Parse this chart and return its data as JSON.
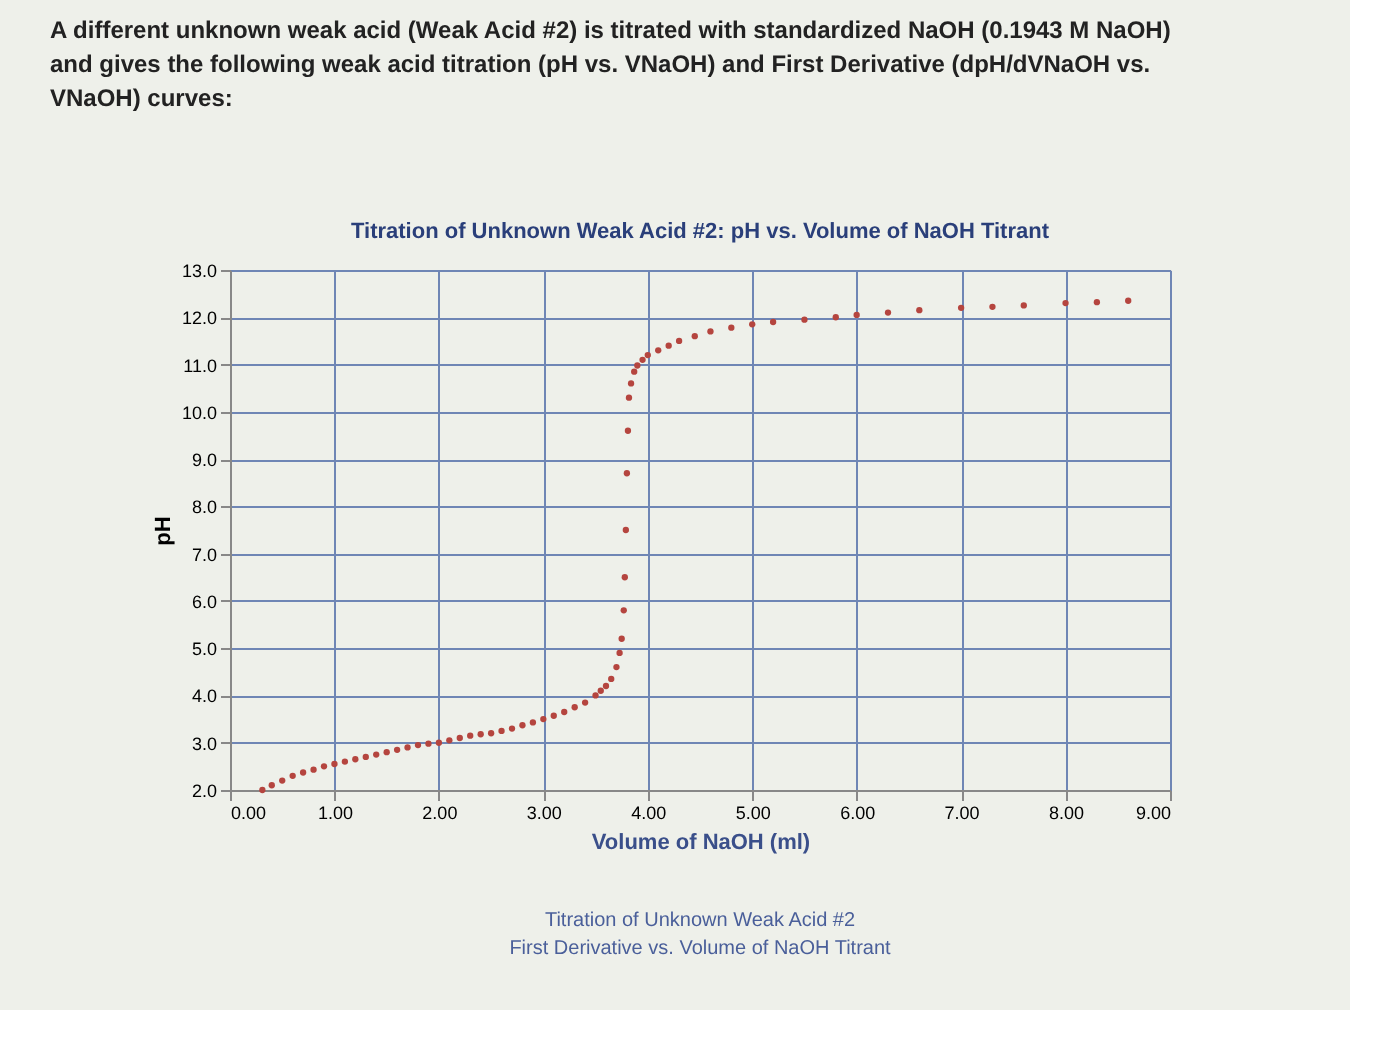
{
  "chart_data": {
    "type": "scatter",
    "title": "Titration of Unknown Weak Acid #2: pH vs. Volume of NaOH Titrant",
    "xlabel": "Volume of NaOH (ml)",
    "ylabel": "pH",
    "annotations": [
      "A different unknown weak acid (Weak Acid #2) is titrated with standardized NaOH (0.1943 M NaOH) and gives the following weak acid titration (pH vs. VNaOH) and First Derivative (dpH/dVNaOH vs. VNaOH) curves:",
      "Titration of Unknown Weak Acid #2",
      "First Derivative vs. Volume of NaOH Titrant"
    ],
    "series": [
      {
        "color": "#b5453f",
        "x": [
          0.31,
          0.4,
          0.5,
          0.6,
          0.7,
          0.8,
          0.9,
          1.0,
          1.1,
          1.2,
          1.3,
          1.4,
          1.5,
          1.6,
          1.7,
          1.8,
          1.9,
          2.0,
          2.1,
          2.2,
          2.3,
          2.4,
          2.5,
          2.6,
          2.7,
          2.8,
          2.9,
          3.0,
          3.1,
          3.2,
          3.3,
          3.4,
          3.5,
          3.55,
          3.6,
          3.65,
          3.7,
          3.73,
          3.75,
          3.77,
          3.78,
          3.79,
          3.8,
          3.81,
          3.82,
          3.84,
          3.87,
          3.9,
          3.95,
          4.0,
          4.1,
          4.2,
          4.3,
          4.45,
          4.6,
          4.8,
          5.0,
          5.2,
          5.5,
          5.8,
          6.0,
          6.3,
          6.6,
          7.0,
          7.3,
          7.6,
          8.0,
          8.3,
          8.6
        ],
        "values": [
          2.0,
          2.1,
          2.2,
          2.3,
          2.37,
          2.43,
          2.5,
          2.55,
          2.6,
          2.65,
          2.7,
          2.75,
          2.8,
          2.85,
          2.9,
          2.95,
          2.98,
          3.0,
          3.05,
          3.1,
          3.15,
          3.18,
          3.2,
          3.25,
          3.3,
          3.37,
          3.43,
          3.5,
          3.57,
          3.65,
          3.75,
          3.85,
          4.0,
          4.1,
          4.2,
          4.35,
          4.6,
          4.9,
          5.2,
          5.8,
          6.5,
          7.5,
          8.7,
          9.6,
          10.3,
          10.6,
          10.85,
          10.98,
          11.1,
          11.2,
          11.3,
          11.4,
          11.5,
          11.6,
          11.7,
          11.78,
          11.85,
          11.9,
          11.95,
          12.0,
          12.05,
          12.1,
          12.15,
          12.2,
          12.22,
          12.25,
          12.3,
          12.32,
          12.35
        ]
      }
    ],
    "xlim": [
      0,
      9
    ],
    "xticks": [
      {
        "value": 0,
        "label": "0.00"
      },
      {
        "value": 1,
        "label": "1.00"
      },
      {
        "value": 2,
        "label": "2.00"
      },
      {
        "value": 3,
        "label": "3.00"
      },
      {
        "value": 4,
        "label": "4.00"
      },
      {
        "value": 5,
        "label": "5.00"
      },
      {
        "value": 6,
        "label": "6.00"
      },
      {
        "value": 7,
        "label": "7.00"
      },
      {
        "value": 8,
        "label": "8.00"
      },
      {
        "value": 9,
        "label": "9.00"
      }
    ],
    "ylim": [
      2,
      13
    ],
    "yticks": [
      {
        "value": 2,
        "label": "2.0"
      },
      {
        "value": 3,
        "label": "3.0"
      },
      {
        "value": 4,
        "label": "4.0"
      },
      {
        "value": 5,
        "label": "5.0"
      },
      {
        "value": 6,
        "label": "6.0"
      },
      {
        "value": 7,
        "label": "7.0"
      },
      {
        "value": 8,
        "label": "8.0"
      },
      {
        "value": 9,
        "label": "9.0"
      },
      {
        "value": 10,
        "label": "10.0"
      },
      {
        "value": 11,
        "label": "11.0"
      },
      {
        "value": 12,
        "label": "12.0"
      },
      {
        "value": 13,
        "label": "13.0"
      }
    ],
    "grid": true,
    "marker": "circle"
  }
}
